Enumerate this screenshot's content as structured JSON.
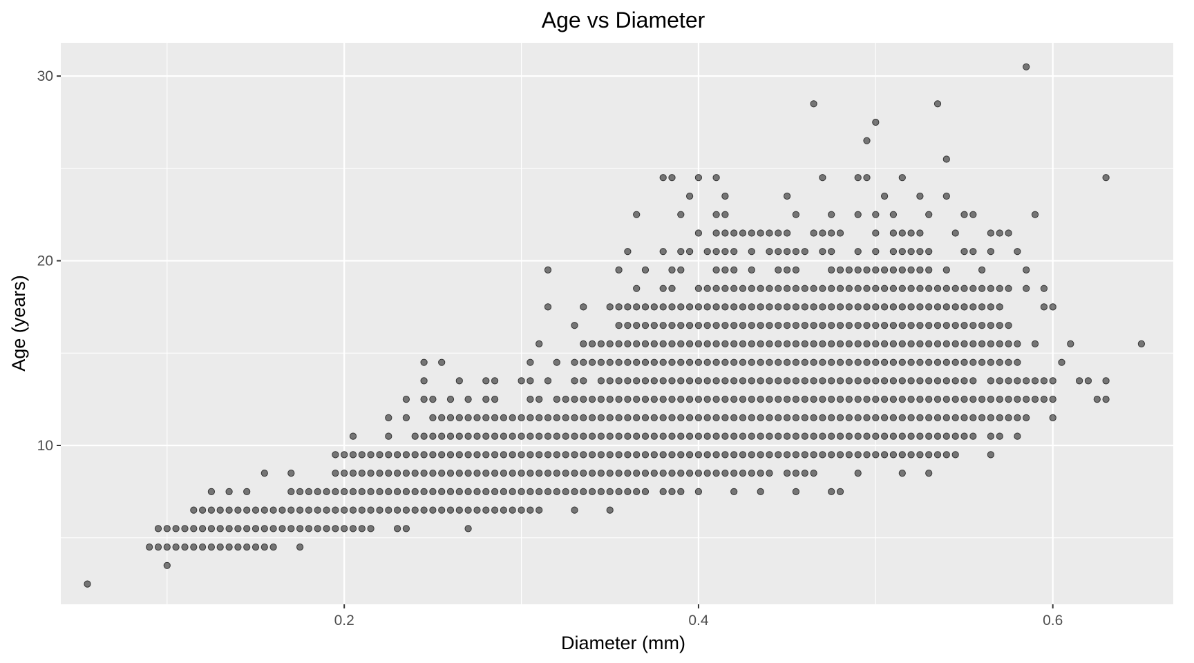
{
  "chart_data": {
    "type": "scatter",
    "title": "Age vs Diameter",
    "xlabel": "Diameter (mm)",
    "ylabel": "Age (years)",
    "xlim": [
      0.04,
      0.668
    ],
    "ylim": [
      1.4,
      31.8
    ],
    "x_major_ticks": [
      0.2,
      0.4,
      0.6
    ],
    "x_tick_labels": [
      "0.2",
      "0.4",
      "0.6"
    ],
    "x_minor_ticks": [
      0.1,
      0.3,
      0.5
    ],
    "y_major_ticks": [
      10,
      20,
      30
    ],
    "y_tick_labels": [
      "10",
      "20",
      "30"
    ],
    "y_minor_ticks": [
      5,
      15,
      25
    ],
    "grid": true,
    "legend": "none",
    "colors": {
      "panel_background": "#ebebeb",
      "grid_line": "#ffffff",
      "point_fill": "#000000",
      "point_fill_opacity": 0.5,
      "point_stroke": "#333333",
      "tick_label": "#4d4d4d",
      "text": "#000000"
    },
    "rows": [
      {
        "y": 2.5,
        "x_ranges": [
          [
            0.055,
            0.055
          ]
        ]
      },
      {
        "y": 3.5,
        "x_ranges": [
          [
            0.1,
            0.1
          ]
        ]
      },
      {
        "y": 4.5,
        "x_ranges": [
          [
            0.09,
            0.16
          ],
          [
            0.175,
            0.175
          ]
        ]
      },
      {
        "y": 5.5,
        "x_ranges": [
          [
            0.095,
            0.215
          ],
          [
            0.23,
            0.235
          ],
          [
            0.27,
            0.27
          ]
        ]
      },
      {
        "y": 6.5,
        "x_ranges": [
          [
            0.115,
            0.3
          ],
          [
            0.305,
            0.31
          ],
          [
            0.33,
            0.33
          ],
          [
            0.35,
            0.35
          ]
        ]
      },
      {
        "y": 7.5,
        "x_ranges": [
          [
            0.125,
            0.125
          ],
          [
            0.135,
            0.135
          ],
          [
            0.145,
            0.145
          ],
          [
            0.17,
            0.37
          ],
          [
            0.38,
            0.39
          ],
          [
            0.4,
            0.4
          ],
          [
            0.42,
            0.42
          ],
          [
            0.435,
            0.435
          ],
          [
            0.455,
            0.455
          ],
          [
            0.475,
            0.475
          ],
          [
            0.48,
            0.48
          ]
        ]
      },
      {
        "y": 8.5,
        "x_ranges": [
          [
            0.155,
            0.155
          ],
          [
            0.17,
            0.17
          ],
          [
            0.195,
            0.44
          ],
          [
            0.45,
            0.465
          ],
          [
            0.49,
            0.49
          ],
          [
            0.515,
            0.515
          ],
          [
            0.53,
            0.53
          ]
        ]
      },
      {
        "y": 9.5,
        "x_ranges": [
          [
            0.195,
            0.545
          ],
          [
            0.565,
            0.565
          ]
        ]
      },
      {
        "y": 10.5,
        "x_ranges": [
          [
            0.205,
            0.205
          ],
          [
            0.225,
            0.225
          ],
          [
            0.24,
            0.555
          ],
          [
            0.565,
            0.57
          ],
          [
            0.58,
            0.58
          ]
        ]
      },
      {
        "y": 11.5,
        "x_ranges": [
          [
            0.225,
            0.225
          ],
          [
            0.235,
            0.235
          ],
          [
            0.25,
            0.585
          ],
          [
            0.6,
            0.6
          ]
        ]
      },
      {
        "y": 12.5,
        "x_ranges": [
          [
            0.235,
            0.235
          ],
          [
            0.245,
            0.25
          ],
          [
            0.26,
            0.26
          ],
          [
            0.27,
            0.27
          ],
          [
            0.28,
            0.285
          ],
          [
            0.305,
            0.31
          ],
          [
            0.32,
            0.6
          ],
          [
            0.625,
            0.63
          ]
        ]
      },
      {
        "y": 13.5,
        "x_ranges": [
          [
            0.245,
            0.245
          ],
          [
            0.265,
            0.265
          ],
          [
            0.28,
            0.285
          ],
          [
            0.3,
            0.305
          ],
          [
            0.315,
            0.315
          ],
          [
            0.33,
            0.335
          ],
          [
            0.345,
            0.555
          ],
          [
            0.565,
            0.6
          ],
          [
            0.615,
            0.62
          ],
          [
            0.63,
            0.63
          ]
        ]
      },
      {
        "y": 14.5,
        "x_ranges": [
          [
            0.245,
            0.245
          ],
          [
            0.255,
            0.255
          ],
          [
            0.305,
            0.305
          ],
          [
            0.32,
            0.32
          ],
          [
            0.33,
            0.58
          ],
          [
            0.605,
            0.605
          ]
        ]
      },
      {
        "y": 15.5,
        "x_ranges": [
          [
            0.31,
            0.31
          ],
          [
            0.335,
            0.58
          ],
          [
            0.59,
            0.59
          ],
          [
            0.61,
            0.61
          ],
          [
            0.65,
            0.65
          ]
        ]
      },
      {
        "y": 16.5,
        "x_ranges": [
          [
            0.33,
            0.33
          ],
          [
            0.355,
            0.575
          ]
        ]
      },
      {
        "y": 17.5,
        "x_ranges": [
          [
            0.315,
            0.315
          ],
          [
            0.335,
            0.335
          ],
          [
            0.35,
            0.57
          ],
          [
            0.595,
            0.6
          ]
        ]
      },
      {
        "y": 18.5,
        "x_ranges": [
          [
            0.365,
            0.365
          ],
          [
            0.38,
            0.385
          ],
          [
            0.4,
            0.575
          ],
          [
            0.585,
            0.585
          ],
          [
            0.595,
            0.595
          ]
        ]
      },
      {
        "y": 19.5,
        "x_ranges": [
          [
            0.315,
            0.315
          ],
          [
            0.355,
            0.355
          ],
          [
            0.37,
            0.37
          ],
          [
            0.385,
            0.385
          ],
          [
            0.39,
            0.39
          ],
          [
            0.41,
            0.41
          ],
          [
            0.415,
            0.42
          ],
          [
            0.43,
            0.43
          ],
          [
            0.445,
            0.455
          ],
          [
            0.475,
            0.53
          ],
          [
            0.54,
            0.54
          ],
          [
            0.56,
            0.56
          ],
          [
            0.585,
            0.585
          ]
        ]
      },
      {
        "y": 20.5,
        "x_ranges": [
          [
            0.36,
            0.36
          ],
          [
            0.38,
            0.38
          ],
          [
            0.39,
            0.395
          ],
          [
            0.405,
            0.42
          ],
          [
            0.43,
            0.43
          ],
          [
            0.44,
            0.46
          ],
          [
            0.47,
            0.475
          ],
          [
            0.49,
            0.49
          ],
          [
            0.5,
            0.5
          ],
          [
            0.51,
            0.525
          ],
          [
            0.53,
            0.53
          ],
          [
            0.55,
            0.555
          ],
          [
            0.565,
            0.565
          ],
          [
            0.58,
            0.58
          ]
        ]
      },
      {
        "y": 21.5,
        "x_ranges": [
          [
            0.4,
            0.4
          ],
          [
            0.41,
            0.42
          ],
          [
            0.425,
            0.45
          ],
          [
            0.465,
            0.47
          ],
          [
            0.475,
            0.48
          ],
          [
            0.5,
            0.5
          ],
          [
            0.51,
            0.525
          ],
          [
            0.545,
            0.545
          ],
          [
            0.565,
            0.575
          ]
        ]
      },
      {
        "y": 22.5,
        "x_ranges": [
          [
            0.365,
            0.365
          ],
          [
            0.39,
            0.39
          ],
          [
            0.41,
            0.415
          ],
          [
            0.455,
            0.455
          ],
          [
            0.475,
            0.475
          ],
          [
            0.49,
            0.49
          ],
          [
            0.5,
            0.5
          ],
          [
            0.51,
            0.51
          ],
          [
            0.53,
            0.53
          ],
          [
            0.55,
            0.555
          ],
          [
            0.59,
            0.59
          ]
        ]
      },
      {
        "y": 23.5,
        "x_ranges": [
          [
            0.395,
            0.395
          ],
          [
            0.415,
            0.415
          ],
          [
            0.45,
            0.45
          ],
          [
            0.505,
            0.505
          ],
          [
            0.525,
            0.525
          ],
          [
            0.54,
            0.54
          ]
        ]
      },
      {
        "y": 24.5,
        "x_ranges": [
          [
            0.38,
            0.385
          ],
          [
            0.4,
            0.4
          ],
          [
            0.41,
            0.41
          ],
          [
            0.47,
            0.47
          ],
          [
            0.49,
            0.495
          ],
          [
            0.515,
            0.515
          ],
          [
            0.63,
            0.63
          ]
        ]
      },
      {
        "y": 25.5,
        "x_ranges": [
          [
            0.54,
            0.54
          ]
        ]
      },
      {
        "y": 26.5,
        "x_ranges": [
          [
            0.495,
            0.495
          ]
        ]
      },
      {
        "y": 27.5,
        "x_ranges": [
          [
            0.5,
            0.5
          ]
        ]
      },
      {
        "y": 28.5,
        "x_ranges": [
          [
            0.465,
            0.465
          ],
          [
            0.535,
            0.535
          ]
        ]
      },
      {
        "y": 30.5,
        "x_ranges": [
          [
            0.585,
            0.585
          ]
        ]
      }
    ]
  }
}
